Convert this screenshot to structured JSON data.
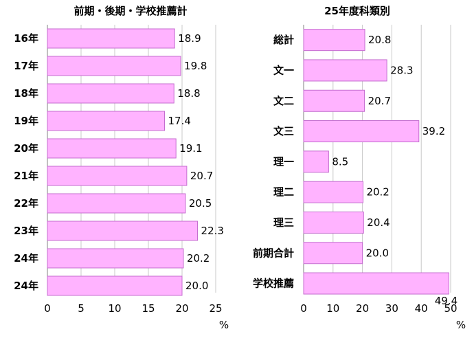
{
  "colors": {
    "bar_fill": "#ffb3ff",
    "bar_stroke": "#c46ccf",
    "grid": "#c8c8c8",
    "axis": "#808080"
  },
  "chart_data": [
    {
      "type": "bar",
      "orientation": "horizontal",
      "title": "前期・後期・学校推薦計",
      "categories": [
        "16年",
        "17年",
        "18年",
        "19年",
        "20年",
        "21年",
        "22年",
        "23年",
        "24年",
        "24年"
      ],
      "values": [
        18.9,
        19.8,
        18.8,
        17.4,
        19.1,
        20.7,
        20.5,
        22.3,
        20.2,
        20.0
      ],
      "value_labels": [
        "18.9",
        "19.8",
        "18.8",
        "17.4",
        "19.1",
        "20.7",
        "20.5",
        "22.3",
        "20.2",
        "20.0"
      ],
      "xlim": [
        0,
        25
      ],
      "xticks": [
        "0",
        "5",
        "10",
        "15",
        "20",
        "25"
      ],
      "xlabel": "%",
      "grid": true
    },
    {
      "type": "bar",
      "orientation": "horizontal",
      "title": "25年度科類別",
      "categories": [
        "総計",
        "文一",
        "文二",
        "文三",
        "理一",
        "理二",
        "理三",
        "前期合計",
        "学校推薦"
      ],
      "values": [
        20.8,
        28.3,
        20.7,
        39.2,
        8.5,
        20.2,
        20.4,
        20.0,
        49.4
      ],
      "value_labels": [
        "20.8",
        "28.3",
        "20.7",
        "39.2",
        "8.5",
        "20.2",
        "20.4",
        "20.0",
        "49.4"
      ],
      "xlim": [
        0,
        50
      ],
      "xticks": [
        "0",
        "10",
        "20",
        "30",
        "40",
        "50"
      ],
      "xlabel": "%",
      "grid": true
    }
  ]
}
